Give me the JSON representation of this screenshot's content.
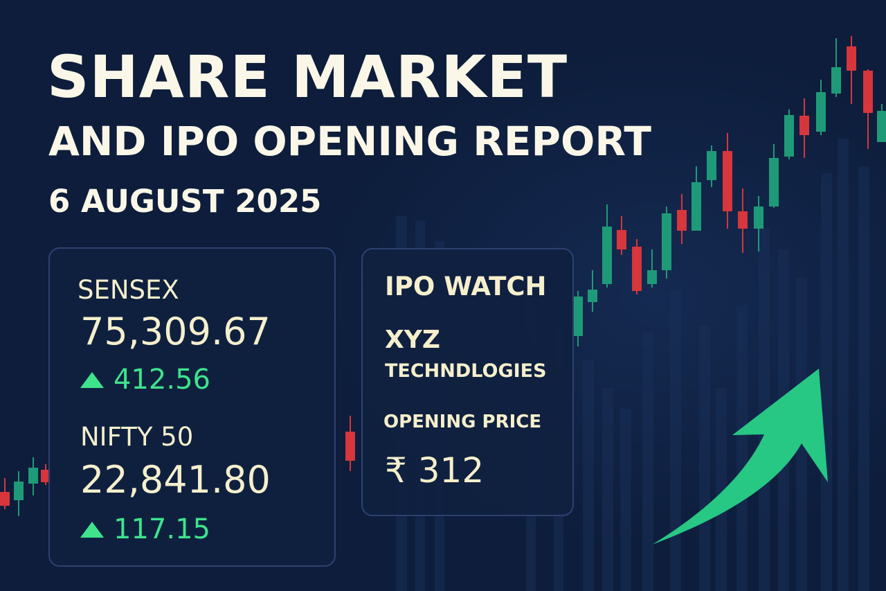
{
  "title": {
    "line1": "SHARE MARKET",
    "line2": "AND IPO OPENING REPORT",
    "date": "6 AUGUST 2025"
  },
  "indices": [
    {
      "name": "SENSEX",
      "value": "75,309.67",
      "change": "412.56",
      "direction": "up"
    },
    {
      "name": "NIFTY 50",
      "value": "22,841.80",
      "change": "117.15",
      "direction": "up"
    }
  ],
  "ipo": {
    "heading": "IPO WATCH",
    "company_line1": "XYZ",
    "company_line2": "TECHNDLOGIES",
    "price_label": "OPENING PRICE",
    "price": "₹ 312"
  },
  "colors": {
    "background": "#0d1d3b",
    "text": "#fbf7e8",
    "up": "#3ee38c",
    "down": "#d6363c",
    "candle_up": "#1f9a78",
    "arrow": "#27c784"
  },
  "decorations": {
    "candlestick_chart": "rising candlestick chart",
    "arrow_icon": "upward trend arrow"
  }
}
